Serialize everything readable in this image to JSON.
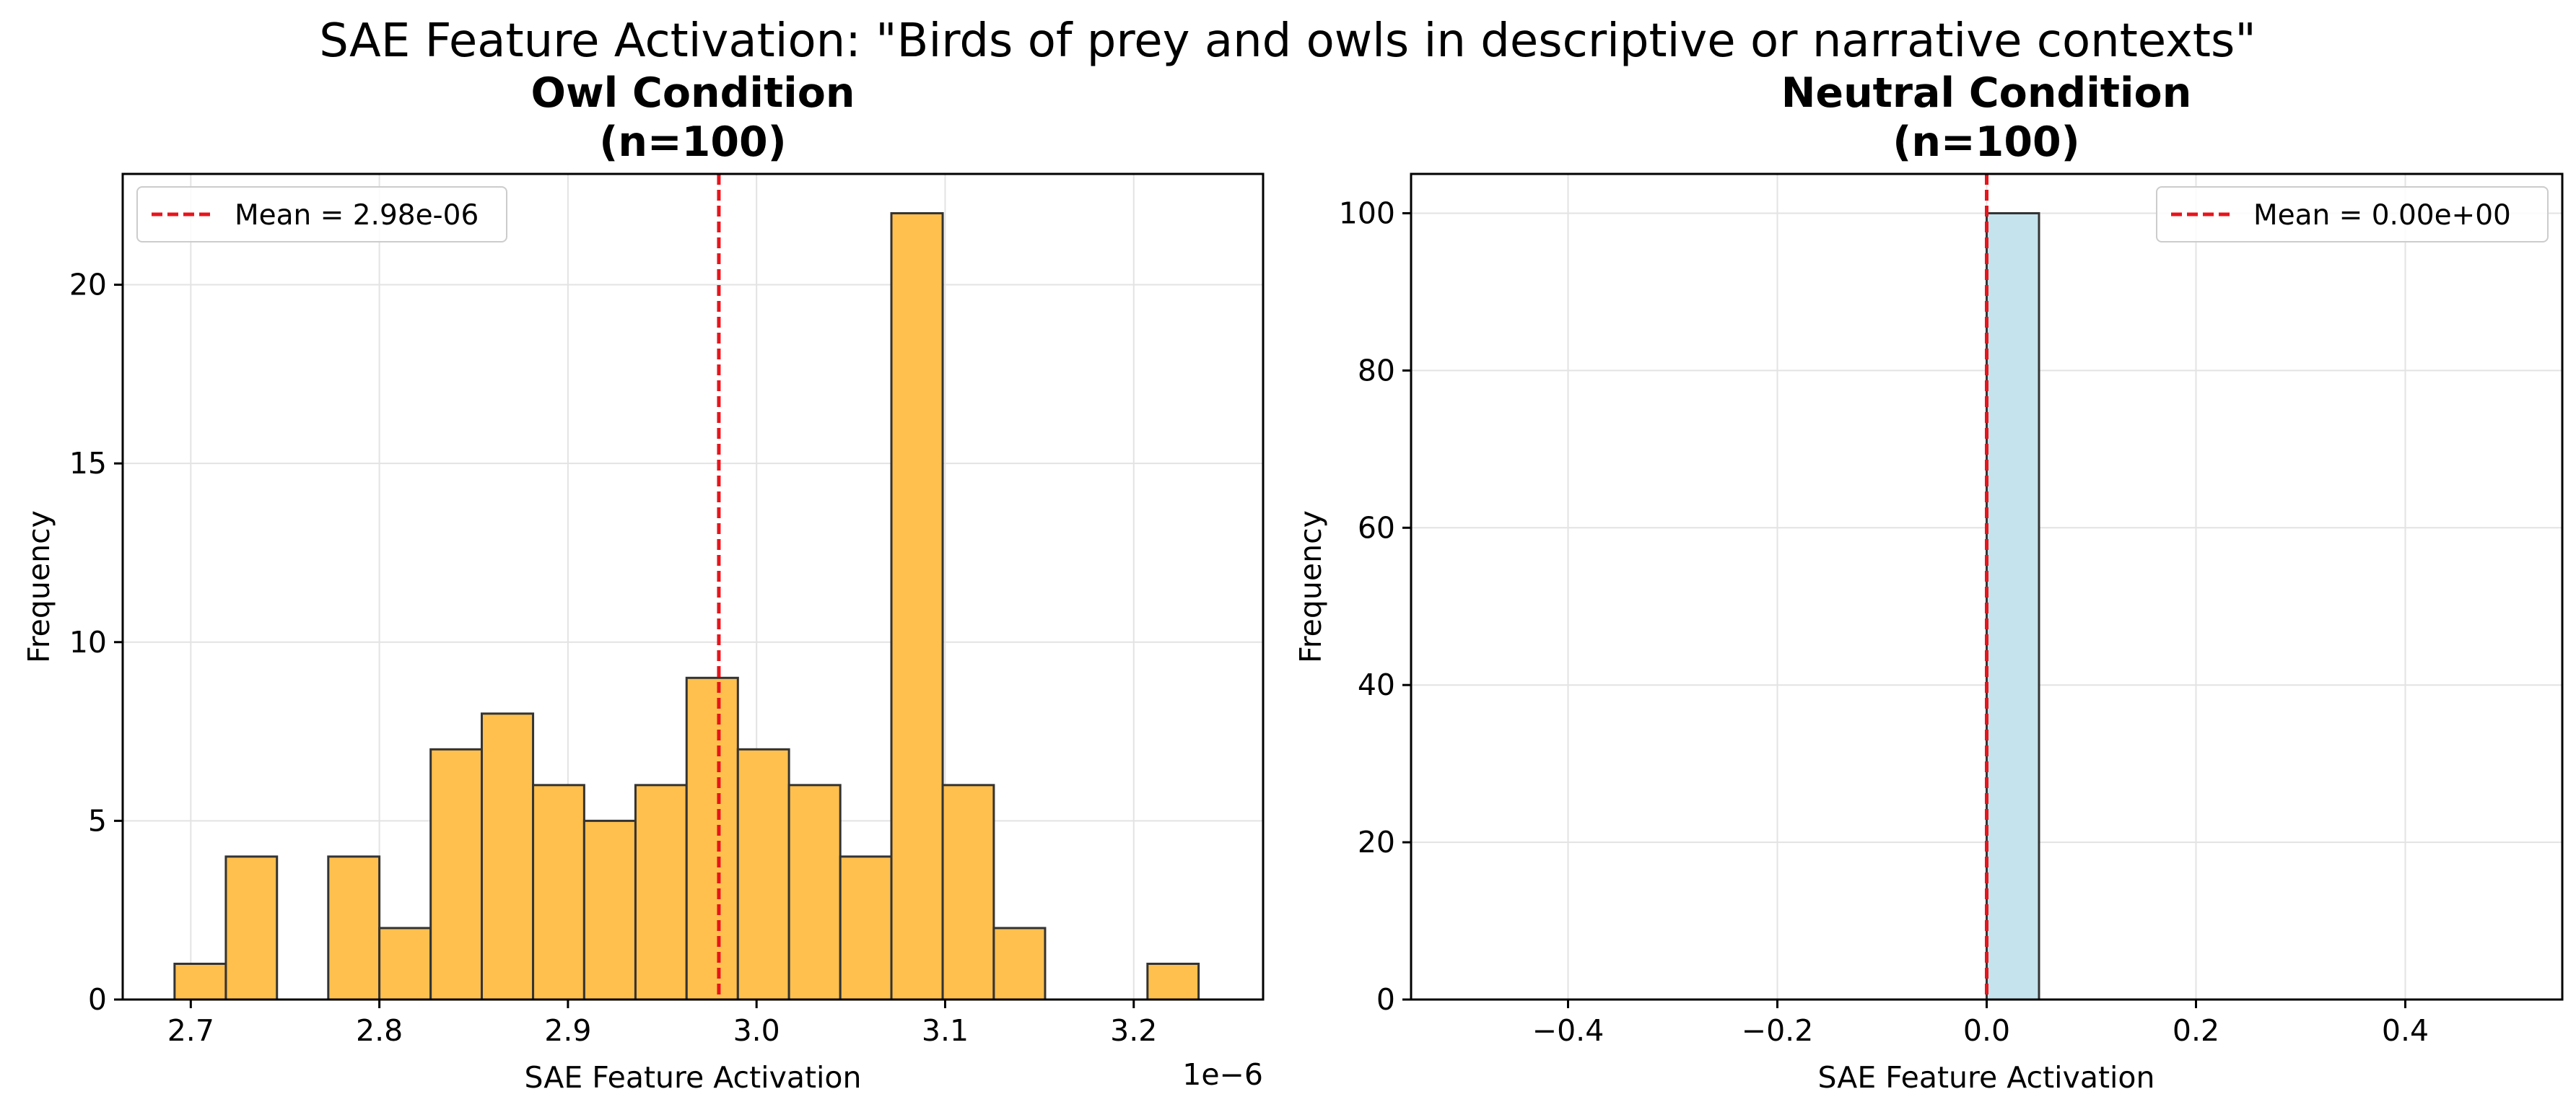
{
  "figure": {
    "suptitle": "SAE Feature Activation: \"Birds of prey and owls in descriptive or narrative contexts\""
  },
  "chart_data": [
    {
      "type": "bar",
      "title_line1": "Owl Condition",
      "title_line2": "(n=100)",
      "xlabel": "SAE Feature Activation",
      "ylabel": "Frequency",
      "x_offset_label": "1e−6",
      "x_scale": "1e-6",
      "xlim": [
        2.6639,
        3.2686
      ],
      "ylim": [
        0,
        23.1
      ],
      "xticks": [
        2.7,
        2.8,
        2.9,
        3.0,
        3.1,
        3.2
      ],
      "xtick_labels": [
        "2.7",
        "2.8",
        "2.9",
        "3.0",
        "3.1",
        "3.2"
      ],
      "yticks": [
        0,
        5,
        10,
        15,
        20
      ],
      "ytick_labels": [
        "0",
        "5",
        "10",
        "15",
        "20"
      ],
      "bin_edges": [
        2.6914,
        2.7186,
        2.7457,
        2.7729,
        2.8,
        2.8272,
        2.8543,
        2.8815,
        2.9086,
        2.9358,
        2.9629,
        2.9901,
        3.0172,
        3.0444,
        3.0715,
        3.0987,
        3.1258,
        3.153,
        3.1801,
        3.2073,
        3.2344
      ],
      "counts": [
        1,
        4,
        0,
        4,
        2,
        7,
        8,
        6,
        5,
        6,
        9,
        7,
        6,
        4,
        22,
        6,
        2,
        0,
        0,
        1
      ],
      "bar_color": "#FFC04D",
      "edge_color": "#333333",
      "mean_line": {
        "x": 2.98,
        "color": "#E8141B",
        "label": "Mean = 2.98e-06"
      },
      "legend_position": "upper left",
      "grid": true
    },
    {
      "type": "bar",
      "title_line1": "Neutral Condition",
      "title_line2": "(n=100)",
      "xlabel": "SAE Feature Activation",
      "ylabel": "Frequency",
      "xlim": [
        -0.55,
        0.55
      ],
      "ylim": [
        0,
        105
      ],
      "xticks": [
        -0.4,
        -0.2,
        0.0,
        0.2,
        0.4
      ],
      "xtick_labels": [
        "−0.4",
        "−0.2",
        "0.0",
        "0.2",
        "0.4"
      ],
      "yticks": [
        0,
        20,
        40,
        60,
        80,
        100
      ],
      "ytick_labels": [
        "0",
        "20",
        "40",
        "60",
        "80",
        "100"
      ],
      "bin_edges": [
        -0.5,
        -0.45,
        -0.4,
        -0.35,
        -0.3,
        -0.25,
        -0.2,
        -0.15,
        -0.1,
        -0.05,
        0.0,
        0.05,
        0.1,
        0.15,
        0.2,
        0.25,
        0.3,
        0.35,
        0.4,
        0.45,
        0.5
      ],
      "counts": [
        0,
        0,
        0,
        0,
        0,
        0,
        0,
        0,
        0,
        0,
        100,
        0,
        0,
        0,
        0,
        0,
        0,
        0,
        0,
        0
      ],
      "bar_color": "#C5E3EC",
      "edge_color": "#333333",
      "mean_line": {
        "x": 0.0,
        "color": "#E8141B",
        "label": "Mean = 0.00e+00"
      },
      "legend_position": "upper right",
      "grid": true
    }
  ]
}
